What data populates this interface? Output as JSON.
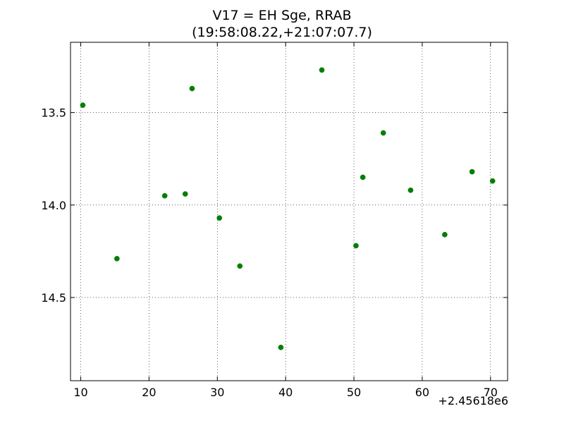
{
  "chart_data": {
    "type": "scatter",
    "title": "V17 = EH Sge, RRAB",
    "subtitle": "(19:58:08.22,+21:07:07.7)",
    "xlabel": "",
    "ylabel": "",
    "x_offset_label": "+2.45618e6",
    "xlim": [
      8.5,
      72.5
    ],
    "ylim": [
      14.95,
      13.12
    ],
    "y_inverted": true,
    "grid": true,
    "x_ticks": [
      10,
      20,
      30,
      40,
      50,
      60,
      70
    ],
    "x_tick_labels": [
      "10",
      "20",
      "30",
      "40",
      "50",
      "60",
      "70"
    ],
    "y_ticks": [
      13.5,
      14.0,
      14.5
    ],
    "y_tick_labels": [
      "13.5",
      "14.0",
      "14.5"
    ],
    "marker_color": "#007f00",
    "points": [
      {
        "x": 10.3,
        "y": 13.46
      },
      {
        "x": 15.3,
        "y": 14.29
      },
      {
        "x": 22.3,
        "y": 13.95
      },
      {
        "x": 25.3,
        "y": 13.94
      },
      {
        "x": 26.3,
        "y": 13.37
      },
      {
        "x": 30.3,
        "y": 14.07
      },
      {
        "x": 33.3,
        "y": 14.33
      },
      {
        "x": 39.3,
        "y": 14.77
      },
      {
        "x": 45.3,
        "y": 13.27
      },
      {
        "x": 50.3,
        "y": 14.22
      },
      {
        "x": 51.3,
        "y": 13.85
      },
      {
        "x": 54.3,
        "y": 13.61
      },
      {
        "x": 58.3,
        "y": 13.92
      },
      {
        "x": 63.3,
        "y": 14.16
      },
      {
        "x": 67.3,
        "y": 13.82
      },
      {
        "x": 70.3,
        "y": 13.87
      }
    ]
  }
}
